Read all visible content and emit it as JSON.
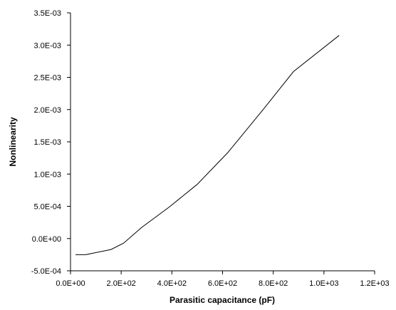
{
  "chart_data": {
    "type": "line",
    "title": "",
    "xlabel": "Parasitic capacitance (pF)",
    "ylabel": "Nonlinearity",
    "xlim": [
      0,
      1200
    ],
    "ylim": [
      -0.0005,
      0.0035
    ],
    "x_ticks": [
      0,
      200,
      400,
      600,
      800,
      1000,
      1200
    ],
    "x_tick_labels": [
      "0.0E+00",
      "2.0E+02",
      "4.0E+02",
      "6.0E+02",
      "8.0E+02",
      "1.0E+03",
      "1.2E+03"
    ],
    "y_ticks": [
      -0.0005,
      0,
      0.0005,
      0.001,
      0.0015,
      0.002,
      0.0025,
      0.003,
      0.0035
    ],
    "y_tick_labels": [
      "-5.0E-04",
      "0.0E+00",
      "5.0E-04",
      "1.0E-03",
      "1.5E-03",
      "2.0E-03",
      "2.5E-03",
      "3.0E-03",
      "3.5E-03"
    ],
    "grid": false,
    "legend": "none",
    "line_color": "#000000",
    "series": [
      {
        "x": [
          20,
          60,
          160,
          210,
          280,
          390,
          500,
          620,
          760,
          880,
          1060
        ],
        "y": [
          -0.00025,
          -0.00025,
          -0.00017,
          -7e-05,
          0.00017,
          0.00049,
          0.00084,
          0.00133,
          0.002,
          0.00259,
          0.00315
        ]
      }
    ]
  }
}
